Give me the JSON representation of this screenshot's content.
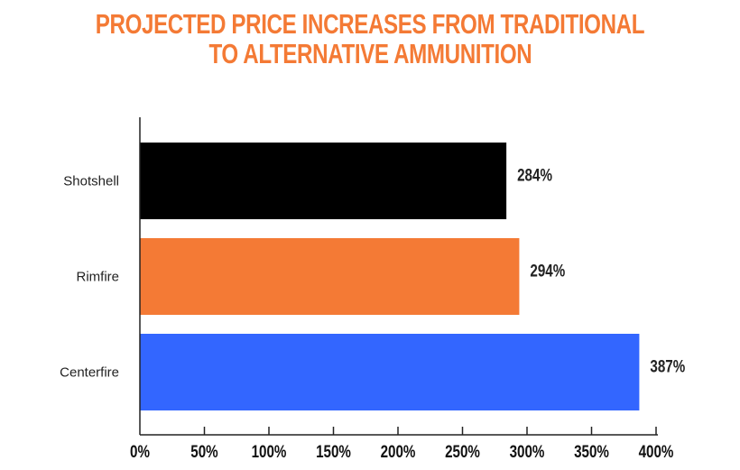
{
  "chart_data": {
    "type": "bar",
    "orientation": "horizontal",
    "title_lines": [
      "PROJECTED PRICE INCREASES FROM TRADITIONAL",
      "TO ALTERNATIVE AMMUNITION"
    ],
    "categories": [
      "Shotshell",
      "Rimfire",
      "Centerfire"
    ],
    "values": [
      284,
      294,
      387
    ],
    "data_labels": [
      "284%",
      "294%",
      "387%"
    ],
    "colors": [
      "#000000",
      "#F47A35",
      "#3366FF"
    ],
    "title_color": "#F47A35",
    "xlim": [
      0,
      400
    ],
    "xticks": [
      0,
      50,
      100,
      150,
      200,
      250,
      300,
      350,
      400
    ],
    "xtick_labels": [
      "0%",
      "50%",
      "100%",
      "150%",
      "200%",
      "250%",
      "300%",
      "350%",
      "400%"
    ],
    "grid": false,
    "xlabel": "",
    "ylabel": ""
  }
}
